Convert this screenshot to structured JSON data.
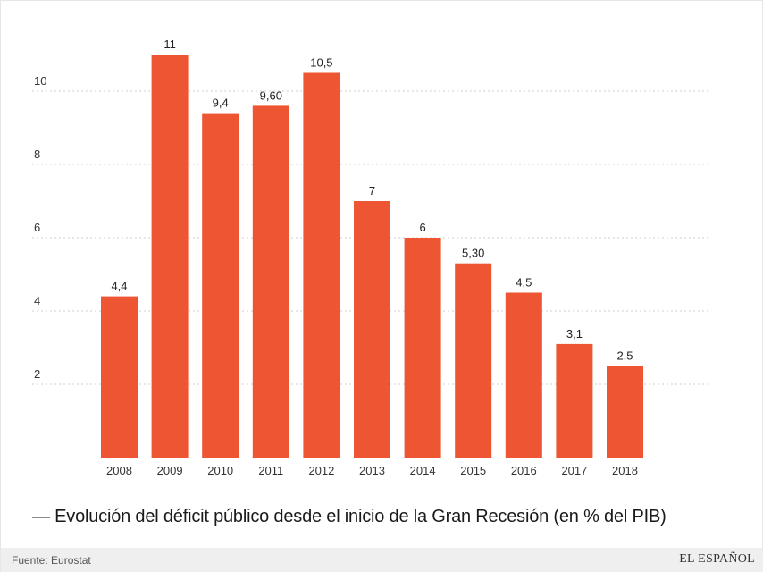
{
  "chart_data": {
    "type": "bar",
    "title": "— Evolución del déficit público desde el inicio de la Gran Recesión (en % del PIB)",
    "xlabel": "",
    "ylabel": "",
    "categories": [
      "2008",
      "2009",
      "2010",
      "2011",
      "2012",
      "2013",
      "2014",
      "2015",
      "2016",
      "2017",
      "2018"
    ],
    "values": [
      4.4,
      11,
      9.4,
      9.6,
      10.5,
      7,
      6,
      5.3,
      4.5,
      3.1,
      2.5
    ],
    "value_labels": [
      "4,4",
      "11",
      "9,4",
      "9,60",
      "10,5",
      "7",
      "6",
      "5,30",
      "4,5",
      "3,1",
      "2,5"
    ],
    "yticks": [
      2,
      4,
      6,
      8,
      10
    ],
    "ylim": [
      0,
      12
    ],
    "grid": true,
    "legend": "none",
    "colors": {
      "bar": "#ed5533",
      "grid": "#cfcfcf",
      "text": "#333333"
    }
  },
  "footer": {
    "source": "Fuente: Eurostat",
    "brand": "EL ESPAÑOL"
  }
}
